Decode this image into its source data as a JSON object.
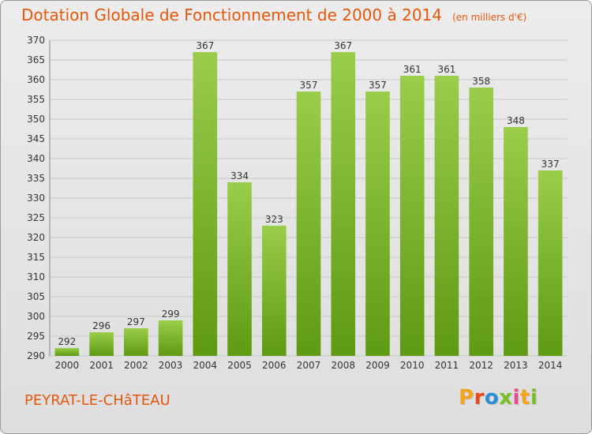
{
  "header": {
    "title": "Dotation Globale de Fonctionnement de 2000 à 2014",
    "unit": "(en milliers d'€)"
  },
  "footer": {
    "commune": "PEYRAT-LE-CHâTEAU",
    "logo_text": "Proxiti"
  },
  "colors": {
    "title": "#e5580c",
    "bar_top": "#9acd4a",
    "bar_bottom": "#5e9a12",
    "grid": "#c8c8c8"
  },
  "chart_data": {
    "type": "bar",
    "title": "Dotation Globale de Fonctionnement de 2000 à 2014",
    "xlabel": "",
    "ylabel": "",
    "categories": [
      "2000",
      "2001",
      "2002",
      "2003",
      "2004",
      "2005",
      "2006",
      "2007",
      "2008",
      "2009",
      "2010",
      "2011",
      "2012",
      "2013",
      "2014"
    ],
    "values": [
      292,
      296,
      297,
      299,
      367,
      334,
      323,
      357,
      367,
      357,
      361,
      361,
      358,
      348,
      337
    ],
    "ylim": [
      290,
      370
    ],
    "ytick_step": 5,
    "grid": true,
    "data_labels": true
  }
}
